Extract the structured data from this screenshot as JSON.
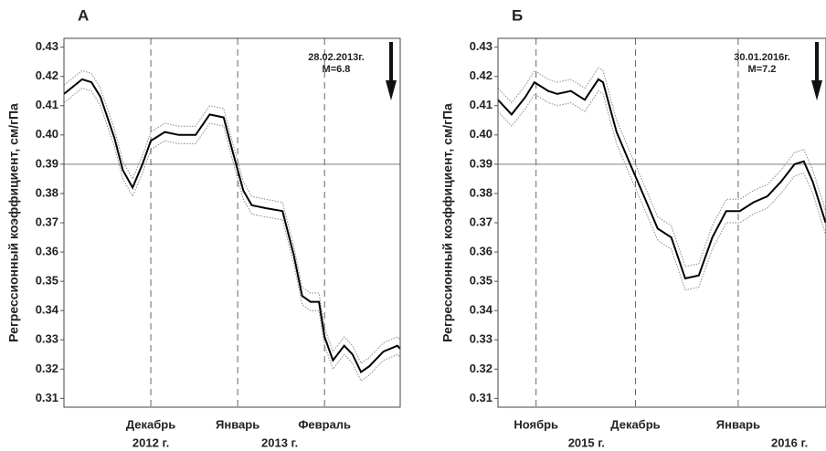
{
  "chart_data": [
    {
      "type": "line",
      "title": "А",
      "y_label": "Регрессионный коэффициент, см/гПа",
      "x": [
        0,
        6.5,
        9.8,
        13,
        18,
        21,
        24.5,
        28,
        31,
        36,
        41,
        47,
        52,
        57,
        60,
        64,
        67,
        72,
        78,
        82,
        85,
        88,
        91,
        93,
        96,
        100,
        103,
        106,
        109,
        114,
        119,
        120
      ],
      "values": [
        0.414,
        0.419,
        0.418,
        0.413,
        0.399,
        0.388,
        0.382,
        0.39,
        0.398,
        0.401,
        0.4,
        0.4,
        0.407,
        0.406,
        0.395,
        0.381,
        0.376,
        0.375,
        0.374,
        0.359,
        0.345,
        0.343,
        0.343,
        0.331,
        0.323,
        0.328,
        0.325,
        0.319,
        0.321,
        0.326,
        0.328,
        0.327
      ],
      "upper": [
        0.417,
        0.422,
        0.421,
        0.416,
        0.402,
        0.391,
        0.385,
        0.393,
        0.401,
        0.404,
        0.403,
        0.403,
        0.41,
        0.409,
        0.398,
        0.384,
        0.379,
        0.378,
        0.377,
        0.362,
        0.348,
        0.346,
        0.346,
        0.334,
        0.326,
        0.331,
        0.328,
        0.322,
        0.324,
        0.329,
        0.331,
        0.33
      ],
      "lower": [
        0.411,
        0.416,
        0.415,
        0.41,
        0.396,
        0.385,
        0.379,
        0.387,
        0.395,
        0.398,
        0.397,
        0.397,
        0.404,
        0.403,
        0.392,
        0.378,
        0.373,
        0.372,
        0.371,
        0.356,
        0.342,
        0.34,
        0.34,
        0.328,
        0.32,
        0.325,
        0.322,
        0.316,
        0.318,
        0.323,
        0.325,
        0.324
      ],
      "color": "#000000",
      "band_color": "#8a8a8a",
      "xlim": [
        0,
        120
      ],
      "xticks": [
        {
          "value": 31,
          "label": "Декабрь"
        },
        {
          "value": 62,
          "label": "Январь"
        },
        {
          "value": 93,
          "label": "Февраль"
        }
      ],
      "year_labels": [
        {
          "text": "2012 г.",
          "x": 31
        },
        {
          "text": "2013 г.",
          "x": 77
        }
      ],
      "ylim": [
        0.307,
        0.433
      ],
      "yticks": [
        0.43,
        0.42,
        0.41,
        {
          "value": 0.4,
          "label": "0.40"
        },
        0.39,
        0.38,
        0.37,
        0.36,
        0.35,
        0.34,
        0.33,
        0.32,
        0.31
      ],
      "hline": 0.39,
      "annotation": [
        "28.02.2013г.",
        "M=6.8"
      ]
    },
    {
      "type": "line",
      "title": "Б",
      "y_label": "Регрессионный коэффициент, см/гПа",
      "x": [
        0,
        4.1,
        8.3,
        11,
        15.2,
        17.9,
        22,
        26.2,
        30.3,
        31.7,
        35.8,
        39.9,
        44.1,
        48.2,
        52.3,
        56.5,
        60.6,
        64.7,
        68.9,
        73,
        77.1,
        81.3,
        85.4,
        89.5,
        92.3,
        95,
        98.9
      ],
      "values": [
        0.412,
        0.407,
        0.413,
        0.418,
        0.415,
        0.414,
        0.415,
        0.412,
        0.419,
        0.418,
        0.401,
        0.39,
        0.379,
        0.368,
        0.365,
        0.351,
        0.352,
        0.365,
        0.374,
        0.374,
        0.377,
        0.379,
        0.384,
        0.39,
        0.391,
        0.384,
        0.37
      ],
      "upper": [
        0.416,
        0.411,
        0.417,
        0.422,
        0.419,
        0.418,
        0.419,
        0.416,
        0.423,
        0.422,
        0.405,
        0.394,
        0.383,
        0.372,
        0.369,
        0.355,
        0.356,
        0.369,
        0.378,
        0.378,
        0.381,
        0.383,
        0.388,
        0.394,
        0.395,
        0.388,
        0.374
      ],
      "lower": [
        0.408,
        0.403,
        0.409,
        0.414,
        0.411,
        0.41,
        0.411,
        0.408,
        0.415,
        0.414,
        0.397,
        0.386,
        0.375,
        0.364,
        0.361,
        0.347,
        0.348,
        0.361,
        0.37,
        0.37,
        0.373,
        0.375,
        0.38,
        0.386,
        0.387,
        0.38,
        0.366
      ],
      "color": "#000000",
      "band_color": "#8a8a8a",
      "xlim": [
        0,
        99
      ],
      "xticks": [
        {
          "value": 11.5,
          "label": "Ноябрь"
        },
        {
          "value": 41.5,
          "label": "Декабрь"
        },
        {
          "value": 72.5,
          "label": "Январь"
        }
      ],
      "year_labels": [
        {
          "text": "2015 г.",
          "x": 26.7
        },
        {
          "text": "2016 г.",
          "x": 88
        }
      ],
      "ylim": [
        0.307,
        0.433
      ],
      "yticks": [
        0.43,
        0.42,
        0.41,
        {
          "value": 0.4,
          "label": "0.40"
        },
        0.39,
        0.38,
        0.37,
        0.36,
        0.35,
        0.34,
        0.33,
        0.32,
        0.31
      ],
      "hline": 0.39,
      "annotation": [
        "30.01.2016г.",
        "M=7.2"
      ]
    }
  ]
}
